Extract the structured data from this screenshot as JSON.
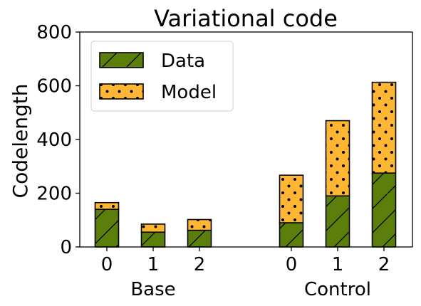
{
  "chart_data": {
    "type": "bar",
    "stacked": true,
    "title": "Variational code",
    "xlabel": "",
    "ylabel": "Codelength",
    "ylim": [
      0,
      800
    ],
    "yticks": [
      0,
      200,
      400,
      600,
      800
    ],
    "groups": [
      {
        "label": "Base",
        "categories": [
          "0",
          "1",
          "2"
        ]
      },
      {
        "label": "Control",
        "categories": [
          "0",
          "1",
          "2"
        ]
      }
    ],
    "series": [
      {
        "name": "Data",
        "color": "#5b7f0a",
        "hatch": "diagonal",
        "values": [
          140,
          55,
          62,
          90,
          190,
          275
        ]
      },
      {
        "name": "Model",
        "color": "#ffb733",
        "hatch": "dots",
        "values": [
          25,
          30,
          40,
          177,
          280,
          338
        ]
      }
    ],
    "legend": {
      "position": "top-left"
    },
    "grid": false
  }
}
